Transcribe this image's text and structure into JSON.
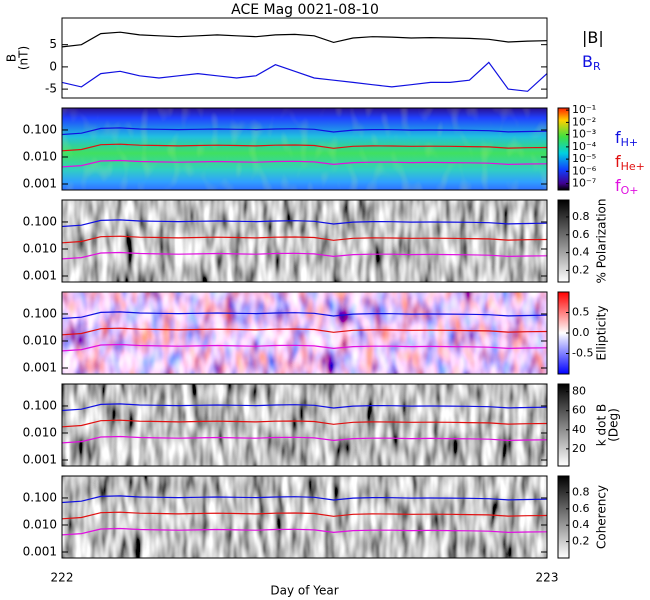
{
  "chart_data": [
    {
      "type": "line",
      "title": "ACE Mag 0021-08-10",
      "ylabel": [
        "B",
        "(nT)"
      ],
      "x": [
        222.0,
        222.04,
        222.08,
        222.12,
        222.16,
        222.2,
        222.24,
        222.28,
        222.32,
        222.36,
        222.4,
        222.44,
        222.48,
        222.52,
        222.56,
        222.6,
        222.64,
        222.68,
        222.72,
        222.76,
        222.8,
        222.84,
        222.88,
        222.92,
        222.96,
        223.0
      ],
      "xlim": [
        222,
        223
      ],
      "ylim": [
        -7,
        11
      ],
      "yticks": [
        5,
        0,
        -5
      ],
      "series": [
        {
          "name": "|B|",
          "color": "#000000",
          "values": [
            4.5,
            5.0,
            7.5,
            7.8,
            7.2,
            7.0,
            6.8,
            7.0,
            7.2,
            7.0,
            6.8,
            7.2,
            7.3,
            7.0,
            5.5,
            6.5,
            6.8,
            6.7,
            6.5,
            6.6,
            6.5,
            6.4,
            6.2,
            5.6,
            5.8,
            5.9
          ]
        },
        {
          "name": "B",
          "sub": "R",
          "color": "#1010e0",
          "values": [
            -3.5,
            -4.5,
            -1.5,
            -1.0,
            -2.0,
            -2.5,
            -2.0,
            -1.5,
            -2.0,
            -2.5,
            -2.0,
            0.5,
            -1.0,
            -2.5,
            -3.0,
            -3.5,
            -4.0,
            -4.5,
            -4.0,
            -3.5,
            -3.5,
            -3.0,
            1.0,
            -5.0,
            -5.5,
            -1.5
          ]
        }
      ]
    },
    {
      "type": "spectrogram",
      "log": true,
      "ylim": [
        0.0006,
        0.65
      ],
      "yticks": [
        {
          "value": 0.1,
          "label": "0.100"
        },
        {
          "value": 0.01,
          "label": "0.010"
        },
        {
          "value": 0.001,
          "label": "0.001"
        }
      ],
      "colorbar": {
        "scale": "rainbow",
        "log": true,
        "clim": [
          3e-08,
          0.15
        ],
        "ticks": [
          {
            "value": 0.1,
            "label": "10⁻¹"
          },
          {
            "value": 0.01,
            "label": "10⁻²"
          },
          {
            "value": 0.001,
            "label": "10⁻³"
          },
          {
            "value": 0.0001,
            "label": "10⁻⁴"
          },
          {
            "value": 1e-05,
            "label": "10⁻⁵"
          },
          {
            "value": 1e-06,
            "label": "10⁻⁶"
          },
          {
            "value": 1e-07,
            "label": "10⁻⁷"
          }
        ]
      },
      "series": [
        {
          "name": "f",
          "sub": "H+",
          "color": "#1010e0",
          "values": [
            0.068,
            0.076,
            0.114,
            0.119,
            0.109,
            0.106,
            0.103,
            0.106,
            0.109,
            0.106,
            0.103,
            0.109,
            0.111,
            0.106,
            0.084,
            0.099,
            0.103,
            0.102,
            0.099,
            0.1,
            0.099,
            0.097,
            0.094,
            0.085,
            0.088,
            0.09
          ]
        },
        {
          "name": "f",
          "sub": "He+",
          "color": "#e01010",
          "values": [
            0.017,
            0.019,
            0.0285,
            0.0298,
            0.0273,
            0.0266,
            0.0258,
            0.0266,
            0.0273,
            0.0266,
            0.0258,
            0.0273,
            0.0278,
            0.0266,
            0.021,
            0.0248,
            0.0258,
            0.0255,
            0.0248,
            0.025,
            0.0248,
            0.0243,
            0.0236,
            0.0213,
            0.022,
            0.0225
          ]
        },
        {
          "name": "f",
          "sub": "O+",
          "color": "#e010e0",
          "values": [
            0.0043,
            0.0048,
            0.0071,
            0.0074,
            0.0068,
            0.0066,
            0.0064,
            0.0066,
            0.0068,
            0.0066,
            0.0064,
            0.0068,
            0.0069,
            0.0066,
            0.0053,
            0.0062,
            0.0064,
            0.0064,
            0.0062,
            0.0063,
            0.0062,
            0.0061,
            0.0059,
            0.0053,
            0.0055,
            0.0056
          ]
        }
      ]
    },
    {
      "type": "spectrogram",
      "log": true,
      "ylim": [
        0.0006,
        0.65
      ],
      "yticks": [
        {
          "value": 0.1,
          "label": "0.100"
        },
        {
          "value": 0.01,
          "label": "0.010"
        },
        {
          "value": 0.001,
          "label": "0.001"
        }
      ],
      "colorbar": {
        "scale": "gray",
        "label": [
          "% Polarization"
        ],
        "clim": [
          0.07,
          0.99
        ],
        "ticks": [
          0.8,
          0.6,
          0.4,
          0.2
        ]
      }
    },
    {
      "type": "spectrogram",
      "log": true,
      "ylim": [
        0.0006,
        0.65
      ],
      "yticks": [
        {
          "value": 0.1,
          "label": "0.100"
        },
        {
          "value": 0.01,
          "label": "0.010"
        },
        {
          "value": 0.001,
          "label": "0.001"
        }
      ],
      "colorbar": {
        "scale": "redblue",
        "label": [
          "Ellipticity"
        ],
        "clim": [
          -1,
          1
        ],
        "ticks": [
          0.5,
          {
            "value": 0,
            "label": "0.0"
          },
          -0.5
        ]
      }
    },
    {
      "type": "spectrogram",
      "log": true,
      "ylim": [
        0.0006,
        0.65
      ],
      "yticks": [
        {
          "value": 0.1,
          "label": "0.100"
        },
        {
          "value": 0.01,
          "label": "0.010"
        },
        {
          "value": 0.001,
          "label": "0.001"
        }
      ],
      "colorbar": {
        "scale": "gray",
        "label": [
          "k dot B",
          "(Deg)"
        ],
        "clim": [
          2,
          88
        ],
        "ticks": [
          80,
          60,
          40,
          20
        ]
      }
    },
    {
      "type": "spectrogram",
      "log": true,
      "ylim": [
        0.0006,
        0.65
      ],
      "yticks": [
        {
          "value": 0.1,
          "label": "0.100"
        },
        {
          "value": 0.01,
          "label": "0.010"
        },
        {
          "value": 0.001,
          "label": "0.001"
        }
      ],
      "colorbar": {
        "scale": "gray",
        "label": [
          "Coherency"
        ],
        "clim": [
          0,
          1
        ],
        "ticks": [
          0.8,
          0.6,
          0.4,
          0.2
        ]
      },
      "xticks": [
        222,
        223
      ],
      "xlabel": "Day of Year"
    }
  ]
}
